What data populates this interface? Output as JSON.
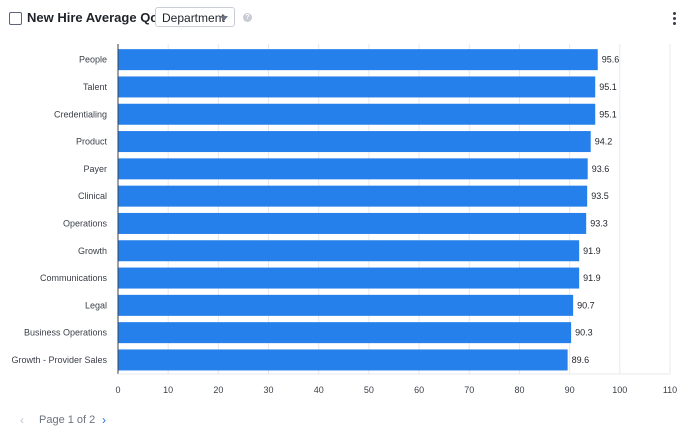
{
  "header": {
    "title": "New Hire Average QoH by",
    "dropdown_value": "Department",
    "help_symbol": "?"
  },
  "pagination": {
    "text": "Page 1 of 2",
    "prev_symbol": "‹",
    "next_symbol": "›"
  },
  "colors": {
    "bar": "#2680eb",
    "grid": "#e6e8ec",
    "axis": "#3a3f47"
  },
  "chart_data": {
    "type": "bar",
    "orientation": "horizontal",
    "categories": [
      "People",
      "Talent",
      "Credentialing",
      "Product",
      "Payer",
      "Clinical",
      "Operations",
      "Growth",
      "Communications",
      "Legal",
      "Business Operations",
      "Growth - Provider Sales"
    ],
    "values": [
      95.6,
      95.1,
      95.1,
      94.2,
      93.6,
      93.5,
      93.3,
      91.9,
      91.9,
      90.7,
      90.3,
      89.6
    ],
    "value_labels": [
      "95.6",
      "95.1",
      "95.1",
      "94.2",
      "93.6",
      "93.5",
      "93.3",
      "91.9",
      "91.9",
      "90.7",
      "90.3",
      "89.6"
    ],
    "xlim": [
      0,
      110
    ],
    "x_ticks": [
      0,
      10,
      20,
      30,
      40,
      50,
      60,
      70,
      80,
      90,
      100,
      110
    ],
    "title": "",
    "xlabel": "",
    "ylabel": "",
    "grid": true,
    "legend": "none"
  }
}
